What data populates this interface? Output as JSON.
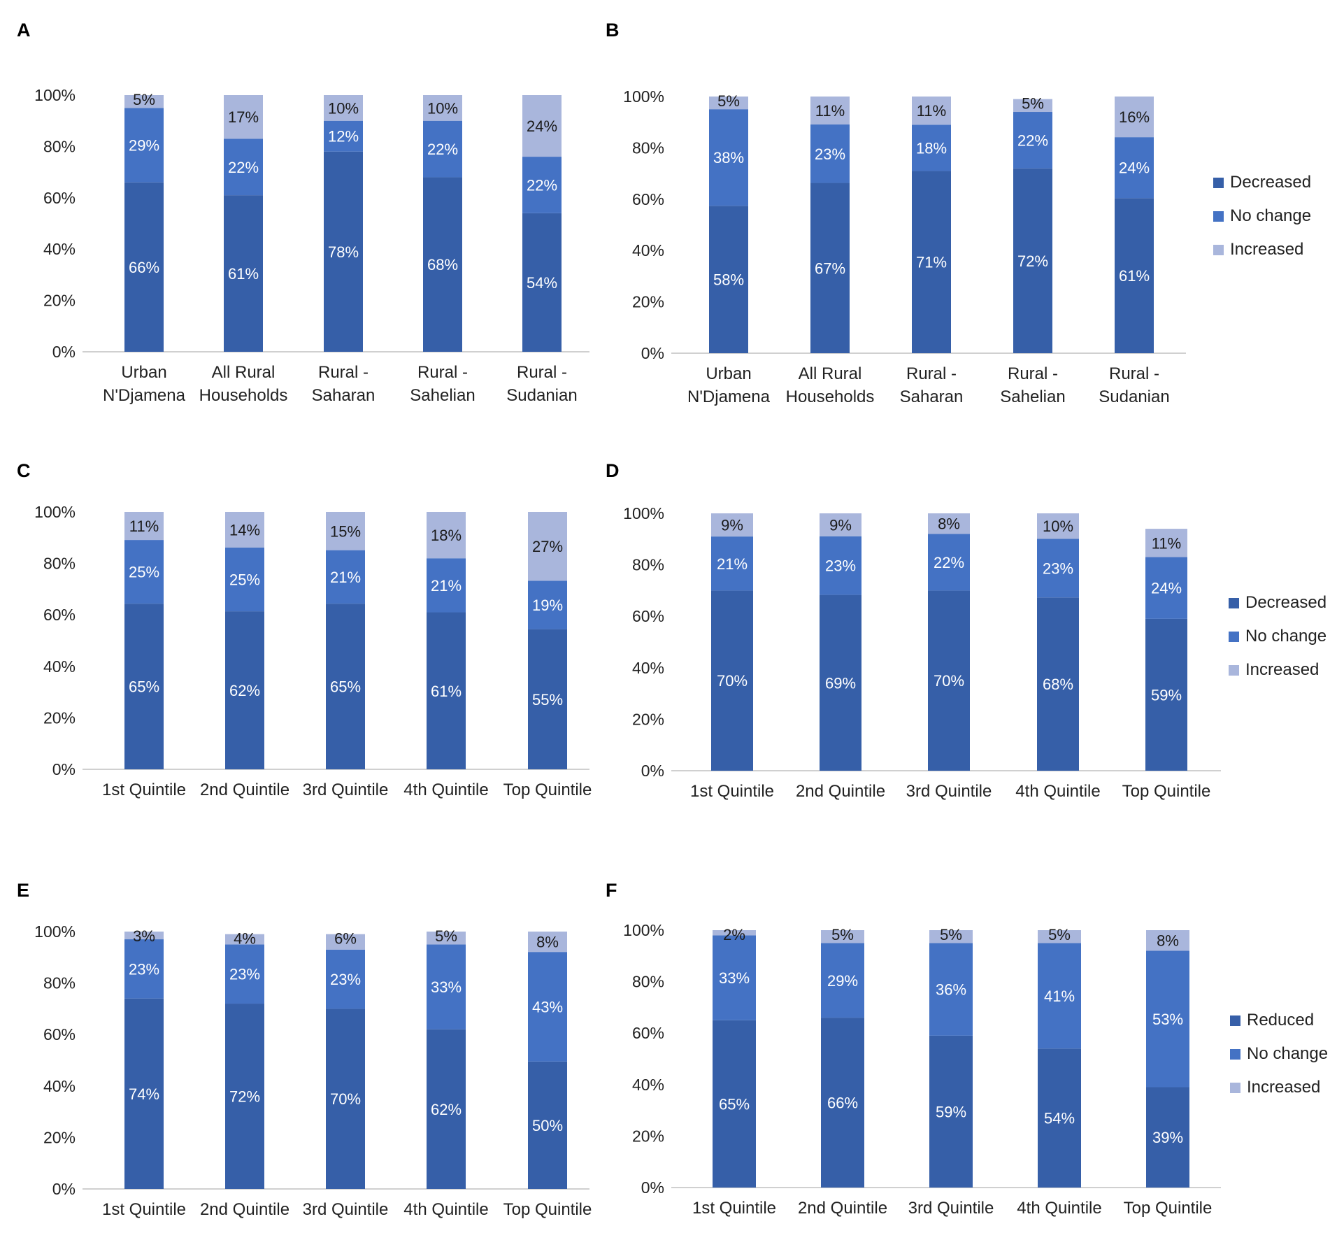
{
  "colors": {
    "decreased": "#365FA8",
    "no_change": "#4472C4",
    "increased": "#A9B6DC",
    "axis": "#d0d0d0",
    "label_light": "#ffffff",
    "label_dark": "#1a1a1a"
  },
  "chart_data": [
    {
      "panel": "A",
      "type": "bar",
      "stacked": true,
      "categories": [
        [
          "Urban",
          "N'Djamena"
        ],
        [
          "All Rural",
          "Households"
        ],
        [
          "Rural -",
          "Saharan"
        ],
        [
          "Rural -",
          "Sahelian"
        ],
        [
          "Rural -",
          "Sudanian"
        ]
      ],
      "series": [
        {
          "name": "Decreased",
          "values": [
            66,
            61,
            78,
            68,
            54
          ]
        },
        {
          "name": "No change",
          "values": [
            29,
            22,
            12,
            22,
            22
          ]
        },
        {
          "name": "Increased",
          "values": [
            5,
            17,
            10,
            10,
            24
          ]
        }
      ],
      "ylim": [
        0,
        100
      ],
      "yticks": [
        "0%",
        "20%",
        "40%",
        "60%",
        "80%",
        "100%"
      ],
      "legend": null
    },
    {
      "panel": "B",
      "type": "bar",
      "stacked": true,
      "categories": [
        [
          "Urban",
          "N'Djamena"
        ],
        [
          "All Rural",
          "Households"
        ],
        [
          "Rural -",
          "Saharan"
        ],
        [
          "Rural -",
          "Sahelian"
        ],
        [
          "Rural -",
          "Sudanian"
        ]
      ],
      "series": [
        {
          "name": "Decreased",
          "values": [
            58,
            67,
            71,
            72,
            61
          ]
        },
        {
          "name": "No change",
          "values": [
            38,
            23,
            18,
            22,
            24
          ]
        },
        {
          "name": "Increased",
          "values": [
            5,
            11,
            11,
            5,
            16
          ]
        }
      ],
      "ylim": [
        0,
        100
      ],
      "yticks": [
        "0%",
        "20%",
        "40%",
        "60%",
        "80%",
        "100%"
      ],
      "legend": [
        "Decreased",
        "No change",
        "Increased"
      ]
    },
    {
      "panel": "C",
      "type": "bar",
      "stacked": true,
      "categories": [
        [
          "1st Quintile"
        ],
        [
          "2nd Quintile"
        ],
        [
          "3rd Quintile"
        ],
        [
          "4th Quintile"
        ],
        [
          "Top Quintile"
        ]
      ],
      "series": [
        {
          "name": "Decreased",
          "values": [
            65,
            62,
            65,
            61,
            55
          ]
        },
        {
          "name": "No change",
          "values": [
            25,
            25,
            21,
            21,
            19
          ]
        },
        {
          "name": "Increased",
          "values": [
            11,
            14,
            15,
            18,
            27
          ]
        }
      ],
      "ylim": [
        0,
        100
      ],
      "yticks": [
        "0%",
        "20%",
        "40%",
        "60%",
        "80%",
        "100%"
      ],
      "legend": null
    },
    {
      "panel": "D",
      "type": "bar",
      "stacked": true,
      "categories": [
        [
          "1st Quintile"
        ],
        [
          "2nd Quintile"
        ],
        [
          "3rd Quintile"
        ],
        [
          "4th Quintile"
        ],
        [
          "Top Quintile"
        ]
      ],
      "series": [
        {
          "name": "Decreased",
          "values": [
            70,
            69,
            70,
            68,
            59
          ]
        },
        {
          "name": "No change",
          "values": [
            21,
            23,
            22,
            23,
            24
          ]
        },
        {
          "name": "Increased",
          "values": [
            9,
            9,
            8,
            10,
            11
          ]
        }
      ],
      "ylim": [
        0,
        100
      ],
      "yticks": [
        "0%",
        "20%",
        "40%",
        "60%",
        "80%",
        "100%"
      ],
      "legend": [
        "Decreased",
        "No change",
        "Increased"
      ]
    },
    {
      "panel": "E",
      "type": "bar",
      "stacked": true,
      "categories": [
        [
          "1st Quintile"
        ],
        [
          "2nd Quintile"
        ],
        [
          "3rd Quintile"
        ],
        [
          "4th Quintile"
        ],
        [
          "Top Quintile"
        ]
      ],
      "series": [
        {
          "name": "Decreased",
          "values": [
            74,
            72,
            70,
            62,
            50
          ]
        },
        {
          "name": "No change",
          "values": [
            23,
            23,
            23,
            33,
            43
          ]
        },
        {
          "name": "Increased",
          "values": [
            3,
            4,
            6,
            5,
            8
          ]
        }
      ],
      "ylim": [
        0,
        100
      ],
      "yticks": [
        "0%",
        "20%",
        "40%",
        "60%",
        "80%",
        "100%"
      ],
      "legend": null
    },
    {
      "panel": "F",
      "type": "bar",
      "stacked": true,
      "categories": [
        [
          "1st Quintile"
        ],
        [
          "2nd Quintile"
        ],
        [
          "3rd Quintile"
        ],
        [
          "4th Quintile"
        ],
        [
          "Top Quintile"
        ]
      ],
      "series": [
        {
          "name": "Reduced",
          "values": [
            65,
            66,
            59,
            54,
            39
          ]
        },
        {
          "name": "No change",
          "values": [
            33,
            29,
            36,
            41,
            53
          ]
        },
        {
          "name": "Increased",
          "values": [
            2,
            5,
            5,
            5,
            8
          ]
        }
      ],
      "ylim": [
        0,
        100
      ],
      "yticks": [
        "0%",
        "20%",
        "40%",
        "60%",
        "80%",
        "100%"
      ],
      "legend": [
        "Reduced",
        "No change",
        "Increased"
      ]
    }
  ]
}
